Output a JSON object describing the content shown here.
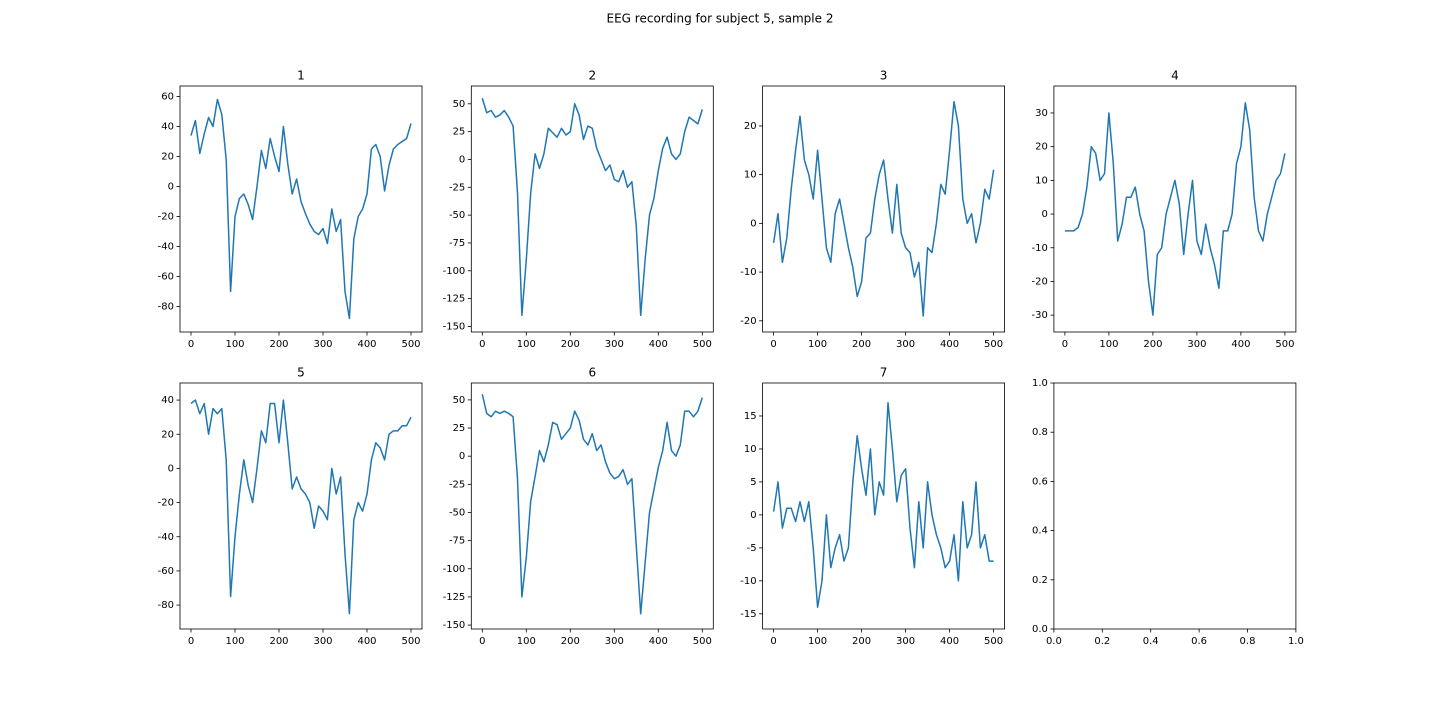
{
  "title": "EEG recording for subject 5, sample 2",
  "chart_data": [
    {
      "type": "line",
      "title": "1",
      "color": "#1f77b4",
      "x": [
        0,
        10,
        20,
        30,
        40,
        50,
        60,
        70,
        80,
        90,
        100,
        110,
        120,
        130,
        140,
        150,
        160,
        170,
        180,
        190,
        200,
        210,
        220,
        230,
        240,
        250,
        260,
        270,
        280,
        290,
        300,
        310,
        320,
        330,
        340,
        350,
        360,
        370,
        380,
        390,
        400,
        410,
        420,
        430,
        440,
        450,
        460,
        470,
        480,
        490,
        500
      ],
      "values": [
        34,
        44,
        22,
        35,
        46,
        40,
        58,
        48,
        18,
        -70,
        -20,
        -8,
        -5,
        -12,
        -22,
        0,
        24,
        12,
        32,
        20,
        10,
        40,
        15,
        -5,
        5,
        -10,
        -18,
        -25,
        -30,
        -32,
        -28,
        -38,
        -15,
        -30,
        -22,
        -70,
        -88,
        -35,
        -20,
        -15,
        -5,
        25,
        28,
        20,
        -3,
        14,
        25,
        28,
        30,
        32,
        42
      ],
      "xlim": [
        -25,
        525
      ],
      "ylim": [
        -97,
        67
      ],
      "xticks": [
        0,
        100,
        200,
        300,
        400,
        500
      ],
      "yticks": [
        -80,
        -60,
        -40,
        -20,
        0,
        20,
        40,
        60
      ]
    },
    {
      "type": "line",
      "title": "2",
      "color": "#1f77b4",
      "x": [
        0,
        10,
        20,
        30,
        40,
        50,
        60,
        70,
        80,
        90,
        100,
        110,
        120,
        130,
        140,
        150,
        160,
        170,
        180,
        190,
        200,
        210,
        220,
        230,
        240,
        250,
        260,
        270,
        280,
        290,
        300,
        310,
        320,
        330,
        340,
        350,
        360,
        370,
        380,
        390,
        400,
        410,
        420,
        430,
        440,
        450,
        460,
        470,
        480,
        490,
        500
      ],
      "values": [
        55,
        42,
        44,
        38,
        40,
        44,
        38,
        30,
        -30,
        -140,
        -90,
        -30,
        5,
        -8,
        5,
        28,
        24,
        20,
        28,
        22,
        25,
        50,
        40,
        18,
        30,
        28,
        10,
        0,
        -10,
        -5,
        -18,
        -20,
        -10,
        -25,
        -20,
        -60,
        -140,
        -90,
        -50,
        -35,
        -10,
        10,
        20,
        5,
        0,
        5,
        25,
        38,
        35,
        32,
        45
      ],
      "xlim": [
        -25,
        525
      ],
      "ylim": [
        -155,
        66
      ],
      "xticks": [
        0,
        100,
        200,
        300,
        400,
        500
      ],
      "yticks": [
        -150,
        -125,
        -100,
        -75,
        -50,
        -25,
        0,
        25,
        50
      ]
    },
    {
      "type": "line",
      "title": "3",
      "color": "#1f77b4",
      "x": [
        0,
        10,
        20,
        30,
        40,
        50,
        60,
        70,
        80,
        90,
        100,
        110,
        120,
        130,
        140,
        150,
        160,
        170,
        180,
        190,
        200,
        210,
        220,
        230,
        240,
        250,
        260,
        270,
        280,
        290,
        300,
        310,
        320,
        330,
        340,
        350,
        360,
        370,
        380,
        390,
        400,
        410,
        420,
        430,
        440,
        450,
        460,
        470,
        480,
        490,
        500
      ],
      "values": [
        -4,
        2,
        -8,
        -3,
        7,
        15,
        22,
        13,
        10,
        5,
        15,
        5,
        -5,
        -8,
        2,
        5,
        0,
        -5,
        -9,
        -15,
        -12,
        -3,
        -2,
        5,
        10,
        13,
        5,
        -2,
        8,
        -2,
        -5,
        -6,
        -11,
        -8,
        -19,
        -5,
        -6,
        0,
        8,
        6,
        15,
        25,
        20,
        5,
        0,
        2,
        -4,
        0,
        7,
        5,
        11
      ],
      "xlim": [
        -25,
        525
      ],
      "ylim": [
        -22.3,
        28.2
      ],
      "xticks": [
        0,
        100,
        200,
        300,
        400,
        500
      ],
      "yticks": [
        -20,
        -10,
        0,
        10,
        20
      ]
    },
    {
      "type": "line",
      "title": "4",
      "color": "#1f77b4",
      "x": [
        0,
        10,
        20,
        30,
        40,
        50,
        60,
        70,
        80,
        90,
        100,
        110,
        120,
        130,
        140,
        150,
        160,
        170,
        180,
        190,
        200,
        210,
        220,
        230,
        240,
        250,
        260,
        270,
        280,
        290,
        300,
        310,
        320,
        330,
        340,
        350,
        360,
        370,
        380,
        390,
        400,
        410,
        420,
        430,
        440,
        450,
        460,
        470,
        480,
        490,
        500
      ],
      "values": [
        -5,
        -5,
        -5,
        -4,
        0,
        8,
        20,
        18,
        10,
        12,
        30,
        15,
        -8,
        -3,
        5,
        5,
        8,
        0,
        -5,
        -20,
        -30,
        -12,
        -10,
        0,
        5,
        10,
        3,
        -12,
        0,
        10,
        -8,
        -12,
        -3,
        -10,
        -15,
        -22,
        -5,
        -5,
        0,
        15,
        20,
        33,
        25,
        5,
        -5,
        -8,
        0,
        5,
        10,
        12,
        18
      ],
      "xlim": [
        -25,
        525
      ],
      "ylim": [
        -35,
        38
      ],
      "xticks": [
        0,
        100,
        200,
        300,
        400,
        500
      ],
      "yticks": [
        -30,
        -20,
        -10,
        0,
        10,
        20,
        30
      ]
    },
    {
      "type": "line",
      "title": "5",
      "color": "#1f77b4",
      "x": [
        0,
        10,
        20,
        30,
        40,
        50,
        60,
        70,
        80,
        90,
        100,
        110,
        120,
        130,
        140,
        150,
        160,
        170,
        180,
        190,
        200,
        210,
        220,
        230,
        240,
        250,
        260,
        270,
        280,
        290,
        300,
        310,
        320,
        330,
        340,
        350,
        360,
        370,
        380,
        390,
        400,
        410,
        420,
        430,
        440,
        450,
        460,
        470,
        480,
        490,
        500
      ],
      "values": [
        38,
        40,
        32,
        38,
        20,
        35,
        32,
        35,
        5,
        -75,
        -40,
        -15,
        5,
        -10,
        -20,
        0,
        22,
        15,
        38,
        38,
        15,
        40,
        15,
        -12,
        -5,
        -12,
        -15,
        -20,
        -35,
        -22,
        -25,
        -30,
        0,
        -15,
        -5,
        -50,
        -85,
        -30,
        -20,
        -25,
        -15,
        5,
        15,
        12,
        5,
        20,
        22,
        22,
        25,
        25,
        30
      ],
      "xlim": [
        -25,
        525
      ],
      "ylim": [
        -94,
        50
      ],
      "xticks": [
        0,
        100,
        200,
        300,
        400,
        500
      ],
      "yticks": [
        -80,
        -60,
        -40,
        -20,
        0,
        20,
        40
      ]
    },
    {
      "type": "line",
      "title": "6",
      "color": "#1f77b4",
      "x": [
        0,
        10,
        20,
        30,
        40,
        50,
        60,
        70,
        80,
        90,
        100,
        110,
        120,
        130,
        140,
        150,
        160,
        170,
        180,
        190,
        200,
        210,
        220,
        230,
        240,
        250,
        260,
        270,
        280,
        290,
        300,
        310,
        320,
        330,
        340,
        350,
        360,
        370,
        380,
        390,
        400,
        410,
        420,
        430,
        440,
        450,
        460,
        470,
        480,
        490,
        500
      ],
      "values": [
        55,
        38,
        35,
        40,
        38,
        40,
        38,
        35,
        -20,
        -125,
        -90,
        -40,
        -18,
        5,
        -5,
        10,
        30,
        28,
        15,
        20,
        25,
        40,
        32,
        15,
        10,
        20,
        5,
        10,
        -5,
        -15,
        -20,
        -18,
        -12,
        -25,
        -20,
        -80,
        -140,
        -95,
        -50,
        -30,
        -10,
        5,
        30,
        5,
        0,
        10,
        40,
        40,
        35,
        40,
        52
      ],
      "xlim": [
        -25,
        525
      ],
      "ylim": [
        -153.5,
        65
      ],
      "xticks": [
        0,
        100,
        200,
        300,
        400,
        500
      ],
      "yticks": [
        -150,
        -125,
        -100,
        -75,
        -50,
        -25,
        0,
        25,
        50
      ]
    },
    {
      "type": "line",
      "title": "7",
      "color": "#1f77b4",
      "x": [
        0,
        10,
        20,
        30,
        40,
        50,
        60,
        70,
        80,
        90,
        100,
        110,
        120,
        130,
        140,
        150,
        160,
        170,
        180,
        190,
        200,
        210,
        220,
        230,
        240,
        250,
        260,
        270,
        280,
        290,
        300,
        310,
        320,
        330,
        340,
        350,
        360,
        370,
        380,
        390,
        400,
        410,
        420,
        430,
        440,
        450,
        460,
        470,
        480,
        490,
        500
      ],
      "values": [
        0.5,
        5,
        -2,
        1,
        1,
        -1,
        2,
        -1,
        2,
        -5,
        -14,
        -10,
        0,
        -8,
        -5,
        -3,
        -7,
        -5,
        5,
        12,
        7,
        3,
        10,
        0,
        5,
        3,
        17,
        10,
        2,
        6,
        7,
        -2,
        -8,
        2,
        -5,
        5,
        0,
        -3,
        -5,
        -8,
        -7,
        -3,
        -10,
        2,
        -5,
        -3,
        5,
        -5,
        -3,
        -7,
        -7
      ],
      "xlim": [
        -25,
        525
      ],
      "ylim": [
        -17.3,
        20
      ],
      "xticks": [
        0,
        100,
        200,
        300,
        400,
        500
      ],
      "yticks": [
        -15,
        -10,
        -5,
        0,
        5,
        10,
        15
      ]
    },
    {
      "type": "line",
      "xlim": [
        0,
        1
      ],
      "ylim": [
        0,
        1
      ],
      "xticks": [
        {
          "value": 0,
          "label": "0.0"
        },
        {
          "value": 0.2,
          "label": "0.2"
        },
        {
          "value": 0.4,
          "label": "0.4"
        },
        {
          "value": 0.6,
          "label": "0.6"
        },
        {
          "value": 0.8,
          "label": "0.8"
        },
        {
          "value": 1,
          "label": "1.0"
        }
      ],
      "yticks": [
        {
          "value": 0,
          "label": "0.0"
        },
        {
          "value": 0.2,
          "label": "0.2"
        },
        {
          "value": 0.4,
          "label": "0.4"
        },
        {
          "value": 0.6,
          "label": "0.6"
        },
        {
          "value": 0.8,
          "label": "0.8"
        },
        {
          "value": 1,
          "label": "1.0"
        }
      ]
    }
  ]
}
